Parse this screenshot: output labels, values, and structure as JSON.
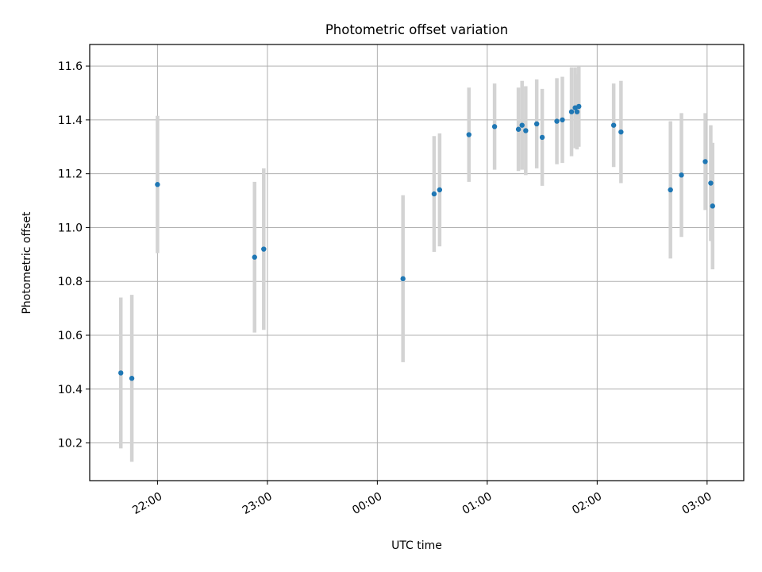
{
  "chart_data": {
    "type": "scatter",
    "title": "Photometric offset variation",
    "xlabel": "UTC time",
    "ylabel": "Photometric offset",
    "x_type": "time",
    "xlim": [
      "21:23",
      "03:20"
    ],
    "ylim": [
      10.06,
      11.68
    ],
    "x_ticks": [
      "22:00",
      "23:00",
      "00:00",
      "01:00",
      "02:00",
      "03:00"
    ],
    "y_ticks": [
      10.2,
      10.4,
      10.6,
      10.8,
      11.0,
      11.2,
      11.4,
      11.6
    ],
    "grid": true,
    "legend": "none",
    "colors": {
      "points": "#1f77b4",
      "errorbars": "#d3d3d3",
      "grid": "#b0b0b0"
    },
    "series": [
      {
        "points": [
          {
            "x": "21:40",
            "y": 10.46,
            "yerr": 0.28
          },
          {
            "x": "21:46",
            "y": 10.44,
            "yerr": 0.31
          },
          {
            "x": "22:00",
            "y": 11.16,
            "yerr": 0.255
          },
          {
            "x": "22:53",
            "y": 10.89,
            "yerr": 0.28
          },
          {
            "x": "22:58",
            "y": 10.92,
            "yerr": 0.3
          },
          {
            "x": "00:14",
            "y": 10.81,
            "yerr": 0.31
          },
          {
            "x": "00:31",
            "y": 11.125,
            "yerr": 0.215
          },
          {
            "x": "00:34",
            "y": 11.14,
            "yerr": 0.21
          },
          {
            "x": "00:50",
            "y": 11.345,
            "yerr": 0.175
          },
          {
            "x": "01:04",
            "y": 11.375,
            "yerr": 0.16
          },
          {
            "x": "01:17",
            "y": 11.365,
            "yerr": 0.155
          },
          {
            "x": "01:19",
            "y": 11.38,
            "yerr": 0.165
          },
          {
            "x": "01:21",
            "y": 11.36,
            "yerr": 0.165
          },
          {
            "x": "01:27",
            "y": 11.385,
            "yerr": 0.165
          },
          {
            "x": "01:30",
            "y": 11.335,
            "yerr": 0.18
          },
          {
            "x": "01:38",
            "y": 11.395,
            "yerr": 0.16
          },
          {
            "x": "01:41",
            "y": 11.4,
            "yerr": 0.16
          },
          {
            "x": "01:46",
            "y": 11.43,
            "yerr": 0.165
          },
          {
            "x": "01:48",
            "y": 11.445,
            "yerr": 0.15
          },
          {
            "x": "01:49",
            "y": 11.43,
            "yerr": 0.14
          },
          {
            "x": "01:50",
            "y": 11.45,
            "yerr": 0.15
          },
          {
            "x": "02:09",
            "y": 11.38,
            "yerr": 0.155
          },
          {
            "x": "02:13",
            "y": 11.355,
            "yerr": 0.19
          },
          {
            "x": "02:40",
            "y": 11.14,
            "yerr": 0.255
          },
          {
            "x": "02:46",
            "y": 11.195,
            "yerr": 0.23
          },
          {
            "x": "02:59",
            "y": 11.245,
            "yerr": 0.18
          },
          {
            "x": "03:02",
            "y": 11.165,
            "yerr": 0.215
          },
          {
            "x": "03:03",
            "y": 11.08,
            "yerr": 0.235
          }
        ]
      }
    ]
  }
}
